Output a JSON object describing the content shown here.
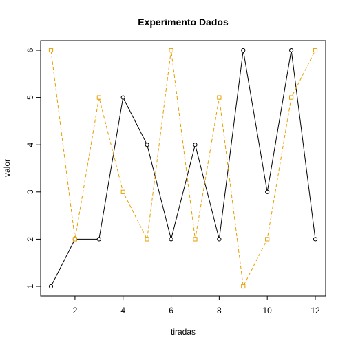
{
  "chart_data": {
    "type": "line",
    "title": "Experimento Dados",
    "xlabel": "tiradas",
    "ylabel": "valor",
    "x": [
      1,
      2,
      3,
      4,
      5,
      6,
      7,
      8,
      9,
      10,
      11,
      12
    ],
    "xlim": [
      1,
      12
    ],
    "ylim": [
      1,
      6
    ],
    "xticks": [
      2,
      4,
      6,
      8,
      10,
      12
    ],
    "yticks": [
      1,
      2,
      3,
      4,
      5,
      6
    ],
    "grid": false,
    "series": [
      {
        "values": [
          1,
          2,
          2,
          5,
          4,
          2,
          4,
          2,
          6,
          3,
          6,
          2
        ],
        "color": "#000000",
        "line_style": "solid",
        "marker": "circle"
      },
      {
        "values": [
          6,
          2,
          5,
          3,
          2,
          6,
          2,
          5,
          1,
          2,
          5,
          6
        ],
        "color": "#E69F00",
        "line_style": "dashed",
        "marker": "square"
      }
    ]
  }
}
